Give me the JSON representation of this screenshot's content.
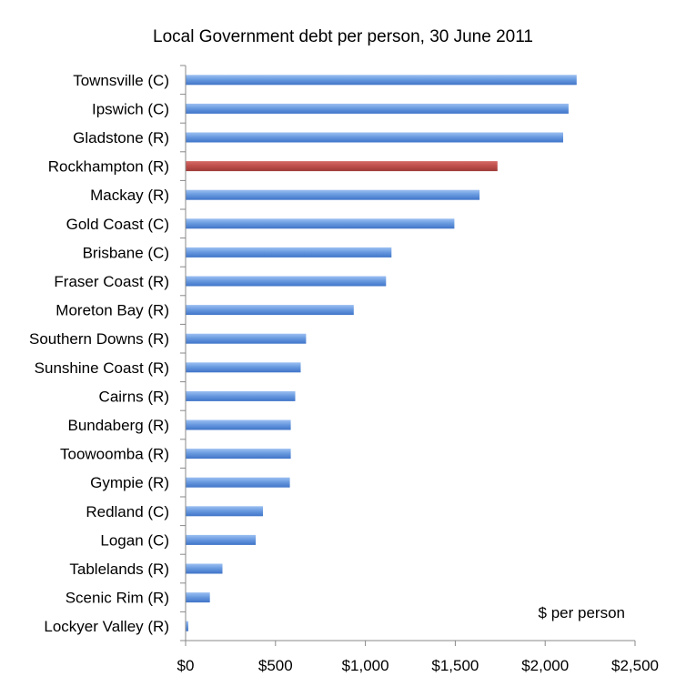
{
  "chart_data": {
    "type": "bar",
    "orientation": "horizontal",
    "title": "Local Government debt per person, 30 June 2011",
    "xlabel": "",
    "ylabel": "",
    "annotation": "$ per person",
    "categories": [
      "Townsville (C)",
      "Ipswich (C)",
      "Gladstone (R)",
      "Rockhampton (R)",
      "Mackay (R)",
      "Gold Coast (C)",
      "Brisbane (C)",
      "Fraser Coast (R)",
      "Moreton Bay (R)",
      "Southern Downs (R)",
      "Sunshine Coast (R)",
      "Cairns (R)",
      "Bundaberg (R)",
      "Toowoomba (R)",
      "Gympie (R)",
      "Redland (C)",
      "Logan (C)",
      "Tablelands (R)",
      "Scenic Rim (R)",
      "Lockyer Valley (R)"
    ],
    "values": [
      2175,
      2130,
      2100,
      1735,
      1635,
      1495,
      1145,
      1115,
      935,
      670,
      640,
      610,
      585,
      585,
      580,
      430,
      390,
      205,
      135,
      15
    ],
    "highlight": "Rockhampton (R)",
    "xlim": [
      0,
      2500
    ],
    "xticks": [
      0,
      500,
      1000,
      1500,
      2000,
      2500
    ],
    "xtick_labels": [
      "$0",
      "$500",
      "$1,000",
      "$1,500",
      "$2,000",
      "$2,500"
    ],
    "colors": {
      "bar": "#6a9be0",
      "highlight": "#c0504d"
    },
    "grid": false,
    "legend": "none"
  }
}
